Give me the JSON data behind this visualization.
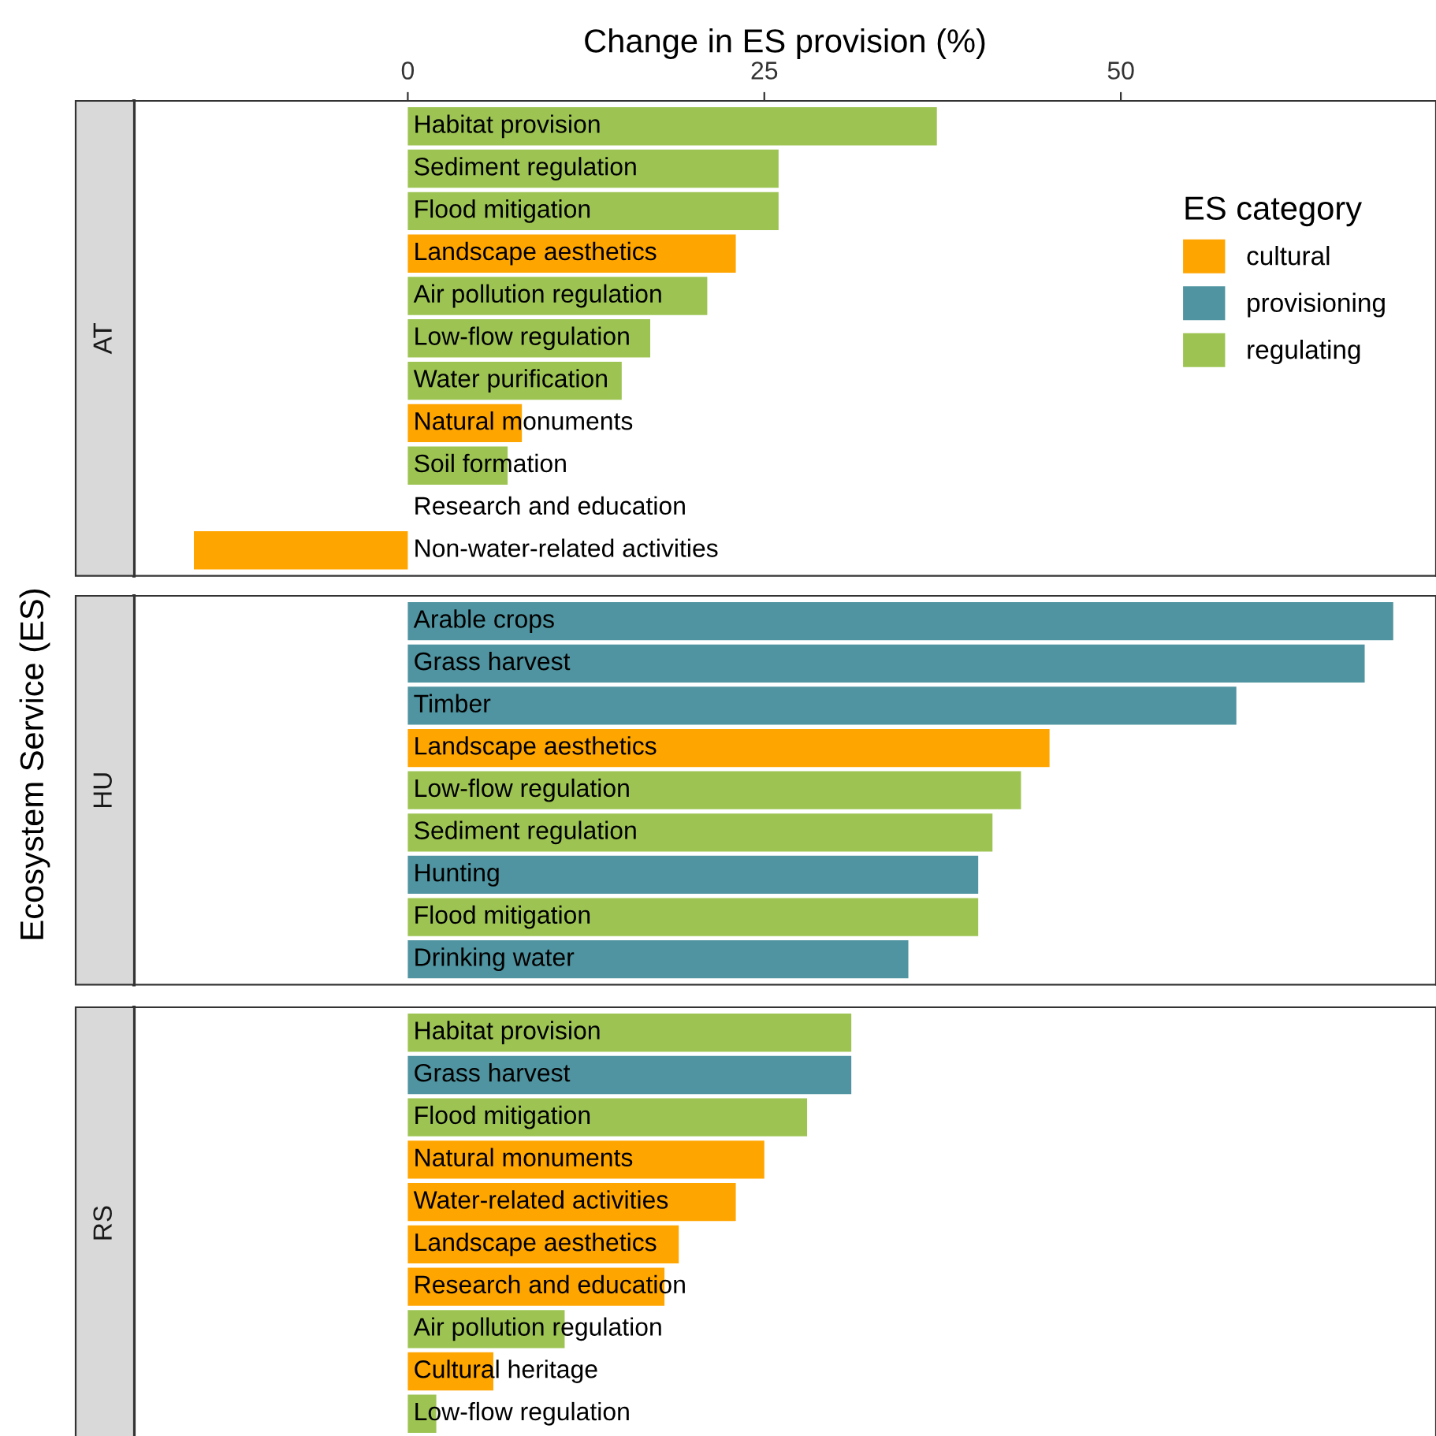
{
  "chart_data": [
    {
      "type": "bar",
      "orientation": "horizontal",
      "title": "AT",
      "xlabel": "Change in ES provision (%)",
      "ylabel": "Ecosystem Service (ES)",
      "legend_title": "ES category",
      "legend": "right",
      "tick_labels": "x",
      "grid": false,
      "xlim": [
        -19.2,
        72.1
      ],
      "xticks": [
        0,
        25,
        50
      ],
      "categories": [
        "Habitat provision",
        "Sediment regulation",
        "Flood mitigation",
        "Landscape aesthetics",
        "Air pollution regulation",
        "Low-flow regulation",
        "Water purification",
        "Natural monuments",
        "Soil formation",
        "Research and education",
        "Non-water-related activities"
      ],
      "series": [
        {
          "name": "cultural",
          "color": "#ffa500",
          "values": [
            null,
            null,
            null,
            23,
            null,
            null,
            null,
            8,
            null,
            0,
            -15
          ]
        },
        {
          "name": "provisioning",
          "color": "#4f94a0",
          "values": [
            null,
            null,
            null,
            null,
            null,
            null,
            null,
            null,
            null,
            null,
            null
          ]
        },
        {
          "name": "regulating",
          "color": "#9dc453",
          "values": [
            37.1,
            26,
            26,
            null,
            21,
            17,
            15,
            null,
            7,
            null,
            null
          ]
        }
      ]
    },
    {
      "type": "bar",
      "orientation": "horizontal",
      "title": "HU",
      "tick_labels": false,
      "grid": false,
      "xlim": [
        -19.2,
        72.1
      ],
      "categories": [
        "Arable crops",
        "Grass harvest",
        "Timber",
        "Landscape aesthetics",
        "Low-flow regulation",
        "Sediment regulation",
        "Hunting",
        "Flood mitigation",
        "Drinking water"
      ],
      "series": [
        {
          "color": "#ffa500",
          "values": [
            null,
            null,
            null,
            45,
            null,
            null,
            null,
            null,
            null
          ]
        },
        {
          "color": "#4f94a0",
          "values": [
            69.1,
            67.1,
            58.1,
            null,
            null,
            null,
            40,
            null,
            35.1
          ]
        },
        {
          "color": "#9dc453",
          "values": [
            null,
            null,
            null,
            null,
            43,
            41,
            null,
            40,
            null
          ]
        }
      ]
    },
    {
      "type": "bar",
      "orientation": "horizontal",
      "title": "RS",
      "tick_labels": false,
      "grid": false,
      "xlim": [
        -19.2,
        72.1
      ],
      "categories": [
        "Habitat provision",
        "Grass harvest",
        "Flood mitigation",
        "Natural monuments",
        "Water-related activities",
        "Landscape aesthetics",
        "Research and education",
        "Air pollution regulation",
        "Cultural heritage",
        "Low-flow regulation"
      ],
      "series": [
        {
          "color": "#ffa500",
          "values": [
            null,
            null,
            null,
            25,
            23,
            19,
            18,
            null,
            6,
            null
          ]
        },
        {
          "color": "#4f94a0",
          "values": [
            null,
            31.1,
            null,
            null,
            null,
            null,
            null,
            null,
            null,
            null
          ]
        },
        {
          "color": "#9dc453",
          "values": [
            31.1,
            null,
            28,
            null,
            null,
            null,
            null,
            11,
            null,
            2
          ]
        }
      ]
    }
  ]
}
